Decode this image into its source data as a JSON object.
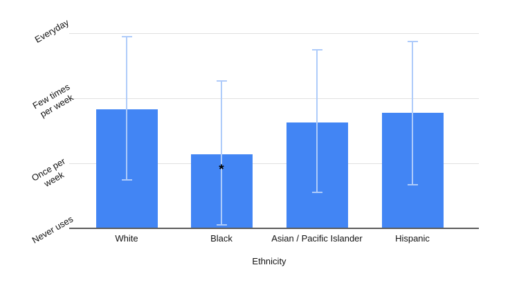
{
  "chart_data": {
    "type": "bar",
    "title": "",
    "xlabel": "Ethnicity",
    "ylabel": "",
    "categories": [
      "White",
      "Black",
      "Asian / Pacific Islander",
      "Hispanic"
    ],
    "values": [
      1.83,
      1.14,
      1.63,
      1.78
    ],
    "error_low": [
      0.74,
      0.05,
      0.55,
      0.67
    ],
    "error_high": [
      2.95,
      2.27,
      2.74,
      2.87
    ],
    "annotations": [
      "",
      "*",
      "",
      ""
    ],
    "y_ticks": [
      {
        "value": 0,
        "lines": [
          "Never uses"
        ]
      },
      {
        "value": 1,
        "lines": [
          "Once per",
          "week"
        ]
      },
      {
        "value": 2,
        "lines": [
          "Few times",
          "per week"
        ]
      },
      {
        "value": 3,
        "lines": [
          "Everyday"
        ]
      }
    ],
    "ylim": [
      0,
      3
    ],
    "grid": true,
    "legend": "none",
    "colors": {
      "bar": "#4285F4",
      "error_bar": "#AECBFA",
      "gridline": "#E0E0E0",
      "axis_line": "#5A5A5A",
      "text": "#111111",
      "annotation": "#000000",
      "background": "#FFFFFF"
    }
  }
}
